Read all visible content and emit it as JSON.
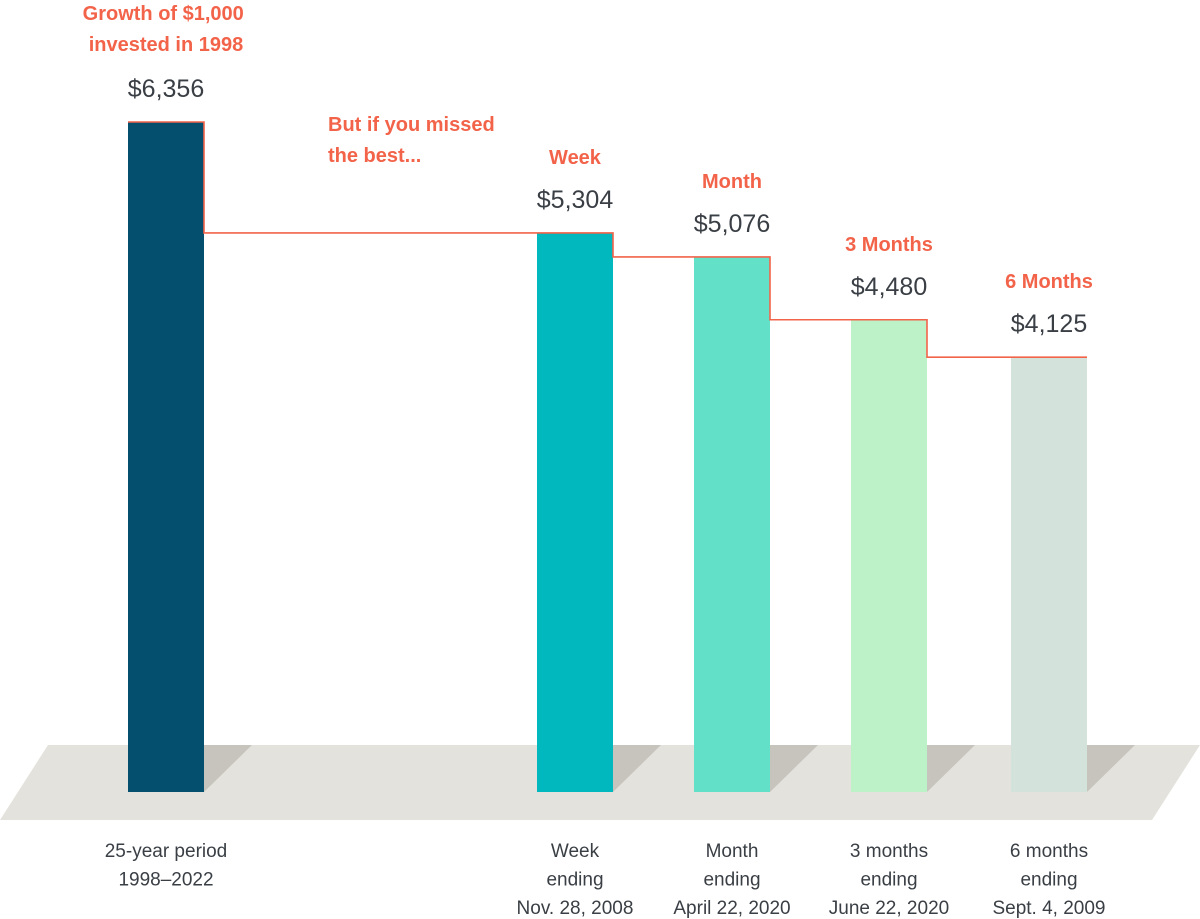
{
  "chart_data": {
    "type": "bar",
    "title": "",
    "headline": [
      "Growth of $1,000",
      "invested in 1998"
    ],
    "annotation": [
      "But if you missed",
      "the best..."
    ],
    "xlabel": "",
    "ylabel": "",
    "ylim": [
      0,
      6356
    ],
    "grid": false,
    "legend": "none",
    "categories": [
      [
        "25-year period",
        "1998–2022"
      ],
      [
        "Week",
        "ending",
        "Nov. 28, 2008"
      ],
      [
        "Month",
        "ending",
        "April 22, 2020"
      ],
      [
        "3 months",
        "ending",
        "June 22, 2020"
      ],
      [
        "6 months",
        "ending",
        "Sept. 4, 2009"
      ]
    ],
    "values": [
      6356,
      5304,
      5076,
      4480,
      4125
    ],
    "value_labels": [
      "$6,356",
      "$5,304",
      "$5,076",
      "$4,480",
      "$4,125"
    ],
    "missed_labels": [
      "",
      "Week",
      "Month",
      "3 Months",
      "6 Months"
    ],
    "colors": [
      "#044e6e",
      "#00b8bd",
      "#62e0c8",
      "#bdf2c8",
      "#d3e3db"
    ],
    "floor_color": "#e3e2dc",
    "shadow_color": "#c6c4bd",
    "step_line_color": "#f2634a",
    "label_color": "#f2634a",
    "text_color": "#3a3f45"
  }
}
